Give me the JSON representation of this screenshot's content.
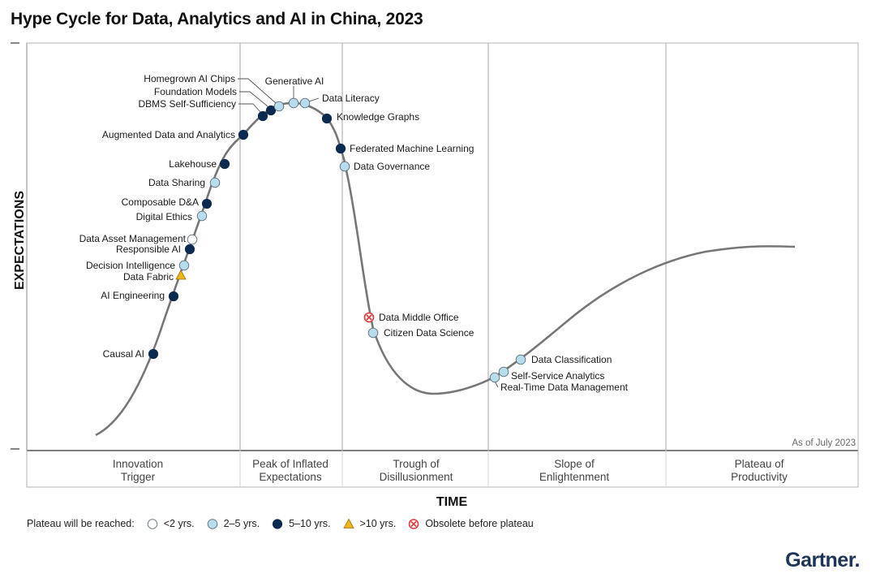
{
  "title": "Hype Cycle for Data, Analytics and AI in China, 2023",
  "brand": "Gartner.",
  "chart_data": {
    "type": "hype-cycle",
    "title": "Hype Cycle for Data, Analytics and AI in China, 2023",
    "ylabel": "EXPECTATIONS",
    "xlabel": "TIME",
    "as_of": "As of July 2023",
    "phases": [
      {
        "name": "Innovation Trigger",
        "lines": [
          "Innovation",
          "Trigger"
        ]
      },
      {
        "name": "Peak of Inflated Expectations",
        "lines": [
          "Peak of Inflated",
          "Expectations"
        ]
      },
      {
        "name": "Trough of Disillusionment",
        "lines": [
          "Trough of",
          "Disillusionment"
        ]
      },
      {
        "name": "Slope of Enlightenment",
        "lines": [
          "Slope of",
          "Enlightenment"
        ]
      },
      {
        "name": "Plateau of Productivity",
        "lines": [
          "Plateau of",
          "Productivity"
        ]
      }
    ],
    "colors": {
      "lt2": "#ffffff",
      "y2to5": "#b7dcec",
      "y5to10": "#0c2a4f",
      "gt10": "#f2b41c",
      "obsolete": "#e03a3a",
      "curve": "#777777",
      "grid": "#b3b3b3"
    },
    "legend": {
      "title": "Plateau will be reached:",
      "items": [
        {
          "key": "lt2",
          "label": "<2 yrs."
        },
        {
          "key": "y2to5",
          "label": "2–5 yrs."
        },
        {
          "key": "y5to10",
          "label": "5–10 yrs."
        },
        {
          "key": "gt10",
          "label": ">10 yrs."
        },
        {
          "key": "obsolete",
          "label": "Obsolete before plateau"
        }
      ]
    },
    "points": [
      {
        "name": "Causal AI",
        "phase": "Innovation Trigger",
        "plateau": "y5to10"
      },
      {
        "name": "AI Engineering",
        "phase": "Innovation Trigger",
        "plateau": "y5to10"
      },
      {
        "name": "Data Fabric",
        "phase": "Innovation Trigger",
        "plateau": "gt10"
      },
      {
        "name": "Decision Intelligence",
        "phase": "Innovation Trigger",
        "plateau": "y2to5"
      },
      {
        "name": "Responsible AI",
        "phase": "Innovation Trigger",
        "plateau": "y5to10"
      },
      {
        "name": "Data Asset Management",
        "phase": "Innovation Trigger",
        "plateau": "lt2"
      },
      {
        "name": "Digital Ethics",
        "phase": "Innovation Trigger",
        "plateau": "y2to5"
      },
      {
        "name": "Composable D&A",
        "phase": "Innovation Trigger",
        "plateau": "y5to10"
      },
      {
        "name": "Data Sharing",
        "phase": "Innovation Trigger",
        "plateau": "y2to5"
      },
      {
        "name": "Lakehouse",
        "phase": "Innovation Trigger",
        "plateau": "y5to10"
      },
      {
        "name": "Augmented Data and Analytics",
        "phase": "Innovation Trigger",
        "plateau": "y5to10"
      },
      {
        "name": "DBMS Self-Sufficiency",
        "phase": "Peak of Inflated Expectations",
        "plateau": "y5to10"
      },
      {
        "name": "Foundation Models",
        "phase": "Peak of Inflated Expectations",
        "plateau": "y5to10"
      },
      {
        "name": "Homegrown AI Chips",
        "phase": "Peak of Inflated Expectations",
        "plateau": "y2to5"
      },
      {
        "name": "Generative AI",
        "phase": "Peak of Inflated Expectations",
        "plateau": "y2to5"
      },
      {
        "name": "Data Literacy",
        "phase": "Peak of Inflated Expectations",
        "plateau": "y2to5"
      },
      {
        "name": "Knowledge Graphs",
        "phase": "Peak of Inflated Expectations",
        "plateau": "y5to10"
      },
      {
        "name": "Federated Machine Learning",
        "phase": "Trough of Disillusionment",
        "plateau": "y5to10"
      },
      {
        "name": "Data Governance",
        "phase": "Trough of Disillusionment",
        "plateau": "y2to5"
      },
      {
        "name": "Data Middle Office",
        "phase": "Trough of Disillusionment",
        "plateau": "obsolete"
      },
      {
        "name": "Citizen Data Science",
        "phase": "Trough of Disillusionment",
        "plateau": "y2to5"
      },
      {
        "name": "Real-Time Data Management",
        "phase": "Slope of Enlightenment",
        "plateau": "y2to5"
      },
      {
        "name": "Self-Service Analytics",
        "phase": "Slope of Enlightenment",
        "plateau": "y2to5"
      },
      {
        "name": "Data Classification",
        "phase": "Slope of Enlightenment",
        "plateau": "y2to5"
      }
    ]
  }
}
